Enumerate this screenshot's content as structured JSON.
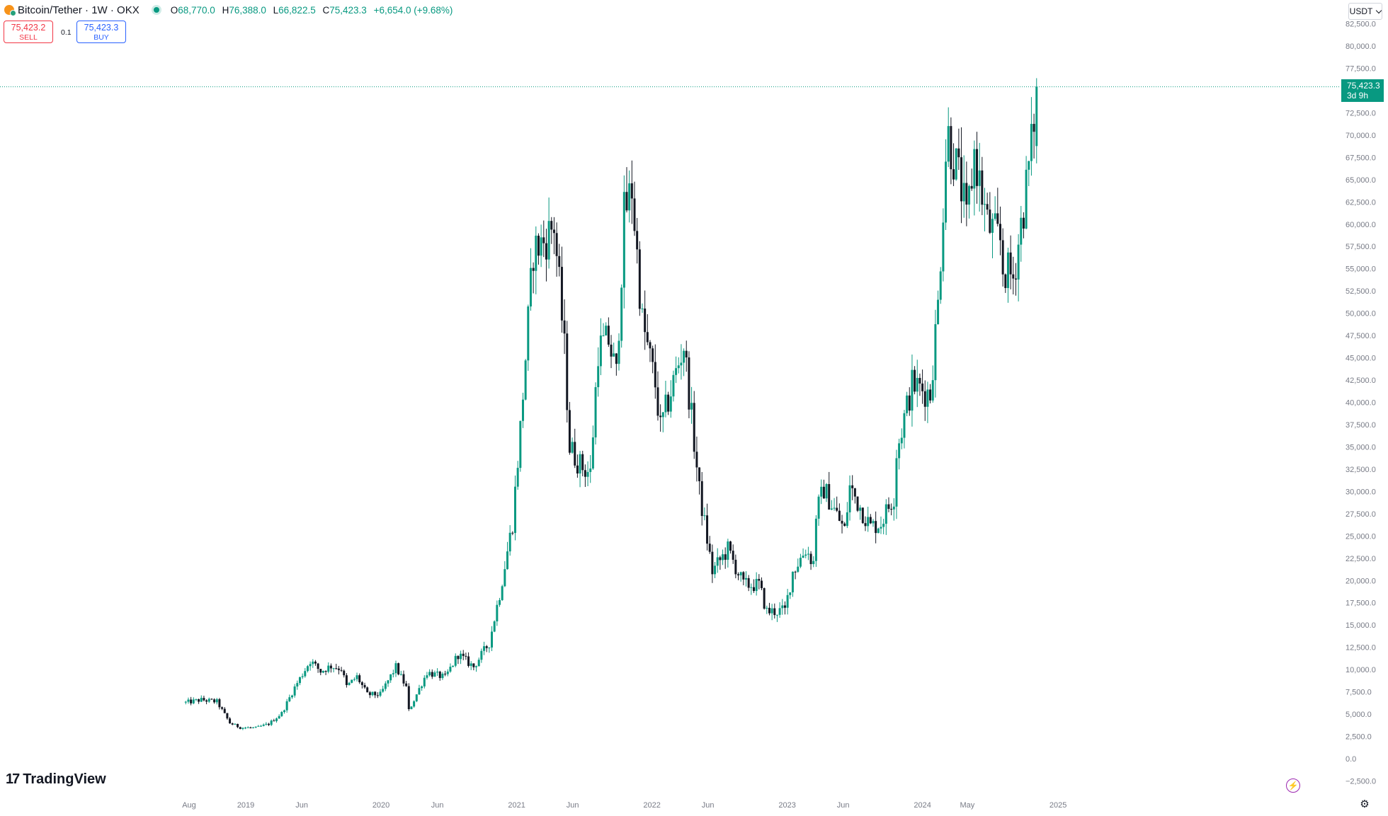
{
  "header": {
    "symbol_title": "Bitcoin/Tether · 1W · OKX",
    "ohlc": {
      "o_label": "O",
      "o_value": "68,770.0",
      "h_label": "H",
      "h_value": "76,388.0",
      "l_label": "L",
      "l_value": "66,822.5",
      "c_label": "C",
      "c_value": "75,423.3",
      "change": "+6,654.0 (+9.68%)"
    }
  },
  "trade": {
    "sell_price": "75,423.2",
    "sell_label": "SELL",
    "spread": "0.1",
    "buy_price": "75,423.3",
    "buy_label": "BUY"
  },
  "currency_selector": "USDT",
  "last_price": {
    "value": "75,423.3",
    "countdown": "3d 9h"
  },
  "logo_text": "TradingView",
  "colors": {
    "up": "#089981",
    "down": "#131722",
    "text_axis": "#787b86",
    "sell": "#f23645",
    "buy": "#2962ff"
  },
  "icons": {
    "lightning": "lightning-icon",
    "settings": "gear-icon",
    "currency_chevron": "chevron-down-icon"
  },
  "chart_data": {
    "type": "candlestick",
    "title": "Bitcoin/Tether · 1W · OKX",
    "interval": "1W",
    "y_axis": {
      "ticks": [
        82500,
        80000,
        77500,
        75000,
        72500,
        70000,
        67500,
        65000,
        62500,
        60000,
        57500,
        55000,
        52500,
        50000,
        47500,
        45000,
        42500,
        40000,
        37500,
        35000,
        32500,
        30000,
        27500,
        25000,
        22500,
        20000,
        17500,
        15000,
        12500,
        10000,
        7500,
        5000,
        2500,
        0,
        -2500
      ],
      "tick_labels": [
        "82,500.0",
        "80,000.0",
        "77,500.0",
        "75,000.0",
        "72,500.0",
        "70,000.0",
        "67,500.0",
        "65,000.0",
        "62,500.0",
        "60,000.0",
        "57,500.0",
        "55,000.0",
        "52,500.0",
        "50,000.0",
        "47,500.0",
        "45,000.0",
        "42,500.0",
        "40,000.0",
        "37,500.0",
        "35,000.0",
        "32,500.0",
        "30,000.0",
        "27,500.0",
        "25,000.0",
        "22,500.0",
        "20,000.0",
        "17,500.0",
        "15,000.0",
        "12,500.0",
        "10,000.0",
        "7,500.0",
        "5,000.0",
        "2,500.0",
        "0.0",
        "−2,500.0"
      ],
      "position": "right"
    },
    "x_axis": {
      "tick_labels": [
        "Aug",
        "2019",
        "Jun",
        "2020",
        "Jun",
        "2021",
        "Jun",
        "2022",
        "Jun",
        "2023",
        "Jun",
        "2024",
        "May",
        "2025"
      ],
      "tick_dates": [
        "2018-08-01",
        "2019-01-01",
        "2019-06-01",
        "2020-01-01",
        "2020-06-01",
        "2021-01-01",
        "2021-06-01",
        "2022-01-01",
        "2022-06-01",
        "2023-01-01",
        "2023-06-01",
        "2024-01-01",
        "2024-05-01",
        "2025-01-01"
      ]
    },
    "close_anchors": [
      [
        "2018-07-23",
        6300
      ],
      [
        "2018-09-03",
        6600
      ],
      [
        "2018-10-15",
        6400
      ],
      [
        "2018-11-19",
        4000
      ],
      [
        "2018-12-17",
        3500
      ],
      [
        "2019-01-28",
        3450
      ],
      [
        "2019-03-04",
        3900
      ],
      [
        "2019-04-08",
        5100
      ],
      [
        "2019-05-13",
        8000
      ],
      [
        "2019-06-24",
        11000
      ],
      [
        "2019-07-22",
        9800
      ],
      [
        "2019-08-19",
        10400
      ],
      [
        "2019-09-16",
        10100
      ],
      [
        "2019-09-30",
        8100
      ],
      [
        "2019-10-28",
        9200
      ],
      [
        "2019-11-25",
        7200
      ],
      [
        "2019-12-30",
        7200
      ],
      [
        "2020-02-10",
        10300
      ],
      [
        "2020-03-09",
        8000
      ],
      [
        "2020-03-16",
        5400
      ],
      [
        "2020-03-30",
        6600
      ],
      [
        "2020-05-04",
        9700
      ],
      [
        "2020-06-22",
        9100
      ],
      [
        "2020-07-27",
        11700
      ],
      [
        "2020-09-07",
        10300
      ],
      [
        "2020-10-19",
        13000
      ],
      [
        "2020-11-16",
        18500
      ],
      [
        "2020-12-21",
        26500
      ],
      [
        "2021-01-11",
        37000
      ],
      [
        "2021-02-15",
        57000
      ],
      [
        "2021-03-15",
        58000
      ],
      [
        "2021-04-12",
        60000
      ],
      [
        "2021-05-10",
        46000
      ],
      [
        "2021-05-24",
        35000
      ],
      [
        "2021-06-21",
        33000
      ],
      [
        "2021-07-19",
        32000
      ],
      [
        "2021-08-09",
        46000
      ],
      [
        "2021-09-06",
        47000
      ],
      [
        "2021-09-27",
        43000
      ],
      [
        "2021-10-18",
        61000
      ],
      [
        "2021-11-08",
        64000
      ],
      [
        "2021-12-06",
        49000
      ],
      [
        "2022-01-10",
        42000
      ],
      [
        "2022-01-24",
        37000
      ],
      [
        "2022-03-28",
        46500
      ],
      [
        "2022-05-09",
        30000
      ],
      [
        "2022-06-13",
        21000
      ],
      [
        "2022-07-25",
        23500
      ],
      [
        "2022-09-05",
        19500
      ],
      [
        "2022-10-17",
        19500
      ],
      [
        "2022-11-07",
        16500
      ],
      [
        "2022-12-26",
        16600
      ],
      [
        "2023-01-16",
        21000
      ],
      [
        "2023-02-20",
        23500
      ],
      [
        "2023-03-13",
        22000
      ],
      [
        "2023-03-20",
        27500
      ],
      [
        "2023-04-10",
        30300
      ],
      [
        "2023-06-05",
        25600
      ],
      [
        "2023-06-19",
        30500
      ],
      [
        "2023-08-14",
        26000
      ],
      [
        "2023-09-11",
        26500
      ],
      [
        "2023-10-16",
        29500
      ],
      [
        "2023-10-23",
        34500
      ],
      [
        "2023-12-04",
        42000
      ],
      [
        "2024-01-22",
        41000
      ],
      [
        "2024-02-12",
        51000
      ],
      [
        "2024-03-04",
        68000
      ],
      [
        "2024-03-11",
        70000
      ],
      [
        "2024-04-15",
        64000
      ],
      [
        "2024-04-29",
        60000
      ],
      [
        "2024-05-20",
        68000
      ],
      [
        "2024-06-24",
        60000
      ],
      [
        "2024-07-29",
        58000
      ],
      [
        "2024-08-05",
        55000
      ],
      [
        "2024-09-02",
        54000
      ],
      [
        "2024-09-30",
        62000
      ],
      [
        "2024-10-21",
        68700
      ],
      [
        "2024-11-04",
        75423.3
      ]
    ],
    "last_candle": {
      "date": "2024-11-04",
      "open": 68770.0,
      "high": 76388.0,
      "low": 66822.5,
      "close": 75423.3
    },
    "price_line": 75423.3
  }
}
